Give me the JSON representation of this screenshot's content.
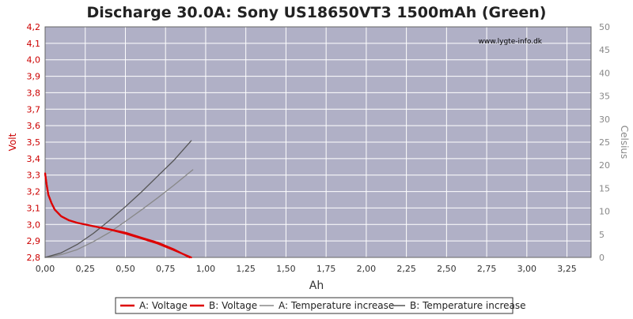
{
  "chart_data": {
    "type": "line",
    "title": "Discharge 30.0A: Sony US18650VT3 1500mAh (Green)",
    "xlabel": "Ah",
    "ylabel_left": "Volt",
    "ylabel_right": "Celsius",
    "watermark": "www.lygte-info.dk",
    "xlim": [
      0,
      3.4
    ],
    "ylim_left": [
      2.8,
      4.2
    ],
    "ylim_right": [
      0,
      50
    ],
    "x_ticks": [
      "0,00",
      "0,25",
      "0,50",
      "0,75",
      "1,00",
      "1,25",
      "1,50",
      "1,75",
      "2,00",
      "2,25",
      "2,50",
      "2,75",
      "3,00",
      "3,25"
    ],
    "y_left_ticks": [
      "2,8",
      "2,9",
      "3,0",
      "3,1",
      "3,2",
      "3,3",
      "3,4",
      "3,5",
      "3,6",
      "3,7",
      "3,8",
      "3,9",
      "4,0",
      "4,1",
      "4,2"
    ],
    "y_right_ticks": [
      "0",
      "5",
      "10",
      "15",
      "20",
      "25",
      "30",
      "35",
      "40",
      "45",
      "50"
    ],
    "grid": true,
    "legend_position": "bottom",
    "colors": {
      "plot_bg": "#b0b0c6",
      "grid": "#ffffff",
      "voltage": "#dd0000",
      "temp_a": "#888888",
      "temp_b": "#555555"
    },
    "series": [
      {
        "name": "A: Voltage",
        "axis": "left",
        "color": "#dd0000",
        "x": [
          0,
          0.01,
          0.02,
          0.04,
          0.06,
          0.1,
          0.15,
          0.2,
          0.3,
          0.4,
          0.5,
          0.6,
          0.7,
          0.8,
          0.85,
          0.9
        ],
        "y": [
          3.31,
          3.24,
          3.18,
          3.13,
          3.09,
          3.05,
          3.025,
          3.01,
          2.99,
          2.97,
          2.95,
          2.92,
          2.89,
          2.85,
          2.825,
          2.8
        ]
      },
      {
        "name": "B: Voltage",
        "axis": "left",
        "color": "#dd0000",
        "x": [
          0,
          0.01,
          0.02,
          0.04,
          0.06,
          0.1,
          0.15,
          0.2,
          0.3,
          0.4,
          0.5,
          0.6,
          0.7,
          0.8,
          0.86,
          0.91
        ],
        "y": [
          3.31,
          3.24,
          3.18,
          3.13,
          3.09,
          3.05,
          3.025,
          3.01,
          2.99,
          2.97,
          2.945,
          2.915,
          2.885,
          2.845,
          2.82,
          2.8
        ]
      },
      {
        "name": "A: Temperature increase",
        "axis": "right",
        "color": "#888888",
        "x": [
          0,
          0.1,
          0.2,
          0.3,
          0.4,
          0.5,
          0.6,
          0.7,
          0.8,
          0.92
        ],
        "y": [
          0,
          0.6,
          1.7,
          3.4,
          5.4,
          7.8,
          10.3,
          12.9,
          15.6,
          19
        ]
      },
      {
        "name": "B: Temperature increase",
        "axis": "right",
        "color": "#555555",
        "x": [
          0,
          0.1,
          0.2,
          0.3,
          0.4,
          0.5,
          0.6,
          0.7,
          0.8,
          0.91
        ],
        "y": [
          0,
          1.0,
          2.8,
          5.2,
          8.0,
          11.0,
          14.2,
          17.6,
          21.0,
          25.3
        ]
      }
    ]
  }
}
